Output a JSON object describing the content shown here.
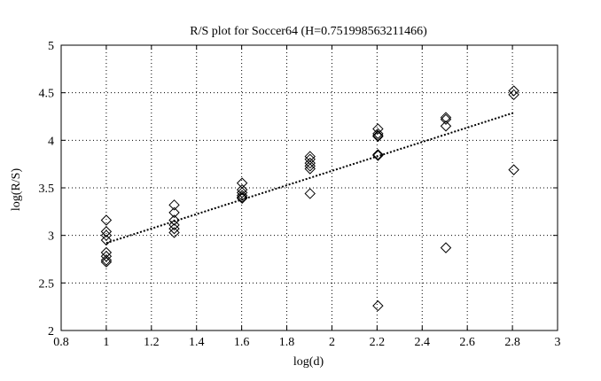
{
  "chart_data": {
    "type": "scatter",
    "title": "R/S plot for Soccer64 (H=0.751998563211466)",
    "xlabel": "log(d)",
    "ylabel": "log(R/S)",
    "xlim": [
      0.8,
      3
    ],
    "ylim": [
      2,
      5
    ],
    "xticks": [
      0.8,
      1,
      1.2,
      1.4,
      1.6,
      1.8,
      2,
      2.2,
      2.4,
      2.6,
      2.8,
      3
    ],
    "xtick_labels": [
      "0.8",
      "1",
      "1.2",
      "1.4",
      "1.6",
      "1.8",
      "2",
      "2.2",
      "2.4",
      "2.6",
      "2.8",
      "3"
    ],
    "yticks": [
      2,
      2.5,
      3,
      3.5,
      4,
      4.5,
      5
    ],
    "ytick_labels": [
      "2",
      "2.5",
      "3",
      "3.5",
      "4",
      "4.5",
      "5"
    ],
    "grid": true,
    "marker": "diamond",
    "points": [
      {
        "x": 1.0,
        "y": 3.16
      },
      {
        "x": 1.0,
        "y": 3.04
      },
      {
        "x": 1.0,
        "y": 3.0
      },
      {
        "x": 1.0,
        "y": 2.95
      },
      {
        "x": 1.0,
        "y": 2.82
      },
      {
        "x": 1.0,
        "y": 2.78
      },
      {
        "x": 1.0,
        "y": 2.74
      },
      {
        "x": 1.0,
        "y": 2.72
      },
      {
        "x": 1.301,
        "y": 3.32
      },
      {
        "x": 1.301,
        "y": 3.24
      },
      {
        "x": 1.301,
        "y": 3.16
      },
      {
        "x": 1.301,
        "y": 3.11
      },
      {
        "x": 1.301,
        "y": 3.07
      },
      {
        "x": 1.301,
        "y": 3.03
      },
      {
        "x": 1.602,
        "y": 3.55
      },
      {
        "x": 1.602,
        "y": 3.48
      },
      {
        "x": 1.602,
        "y": 3.45
      },
      {
        "x": 1.602,
        "y": 3.42
      },
      {
        "x": 1.602,
        "y": 3.4
      },
      {
        "x": 1.602,
        "y": 3.39
      },
      {
        "x": 1.903,
        "y": 3.83
      },
      {
        "x": 1.903,
        "y": 3.8
      },
      {
        "x": 1.903,
        "y": 3.76
      },
      {
        "x": 1.903,
        "y": 3.73
      },
      {
        "x": 1.903,
        "y": 3.7
      },
      {
        "x": 1.903,
        "y": 3.44
      },
      {
        "x": 2.204,
        "y": 4.12
      },
      {
        "x": 2.204,
        "y": 4.07
      },
      {
        "x": 2.204,
        "y": 4.05
      },
      {
        "x": 2.204,
        "y": 4.04
      },
      {
        "x": 2.204,
        "y": 3.85
      },
      {
        "x": 2.204,
        "y": 3.84
      },
      {
        "x": 2.204,
        "y": 2.26
      },
      {
        "x": 2.505,
        "y": 4.24
      },
      {
        "x": 2.505,
        "y": 4.22
      },
      {
        "x": 2.505,
        "y": 4.15
      },
      {
        "x": 2.505,
        "y": 2.87
      },
      {
        "x": 2.806,
        "y": 4.52
      },
      {
        "x": 2.806,
        "y": 4.48
      },
      {
        "x": 2.806,
        "y": 3.69
      }
    ],
    "fit_line": {
      "style": "dotted",
      "x": [
        1.0,
        2.806
      ],
      "y": [
        2.92,
        4.29
      ]
    }
  }
}
